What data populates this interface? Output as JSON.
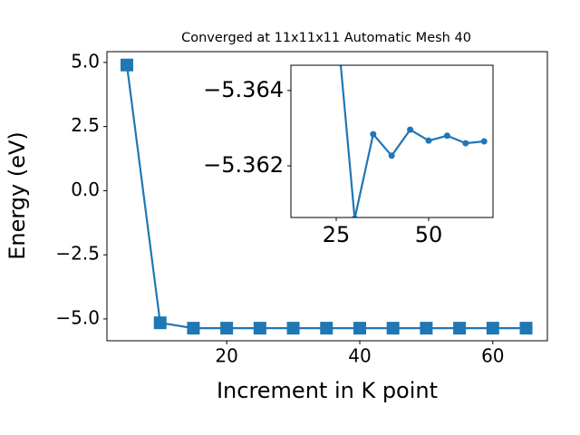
{
  "chart_data": [
    {
      "type": "line",
      "title": "Converged at 11x11x11 Automatic Mesh 40",
      "x_label": "Increment in K point",
      "y_label": "Energy (eV)",
      "x": [
        5,
        10,
        15,
        20,
        25,
        30,
        35,
        40,
        45,
        50,
        55,
        60,
        65
      ],
      "series": [
        {
          "color": "#1f77b4",
          "marker": "square",
          "values": [
            4.9,
            -5.15,
            -5.36,
            -5.36,
            -5.36,
            -5.36,
            -5.36,
            -5.36,
            -5.36,
            -5.36,
            -5.36,
            -5.36,
            -5.36
          ]
        }
      ],
      "xlim": [
        2.0,
        68.2
      ],
      "ylim": [
        -5.85,
        5.42
      ],
      "xticks": [
        20,
        40,
        60
      ],
      "yticks": [
        {
          "value": 5,
          "label": "5.0"
        },
        {
          "value": 2.5,
          "label": "2.5"
        },
        {
          "value": 0,
          "label": "0.0"
        },
        {
          "value": -2.5,
          "label": "−2.5"
        },
        {
          "value": -5,
          "label": "−5.0"
        }
      ]
    },
    {
      "type": "line",
      "x": [
        25,
        30,
        35,
        40,
        45,
        50,
        55,
        60,
        65
      ],
      "series": [
        {
          "color": "#1f77b4",
          "marker": "circle",
          "values": [
            -5.366,
            -5.3606,
            -5.36284,
            -5.36227,
            -5.36296,
            -5.36267,
            -5.3628,
            -5.3626,
            -5.36265
          ]
        }
      ],
      "xlim": [
        12.75,
        67.4
      ],
      "ylim": [
        -5.36467,
        -5.36063
      ],
      "y_inverted": true,
      "xticks": [
        25,
        50
      ],
      "yticks": [
        {
          "value": -5.364,
          "label": "−5.364"
        },
        {
          "value": -5.362,
          "label": "−5.362"
        }
      ]
    }
  ]
}
